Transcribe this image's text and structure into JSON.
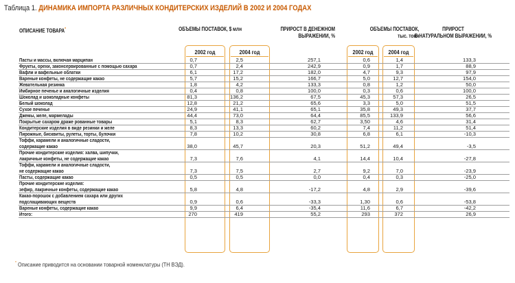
{
  "title": {
    "label": "Таблица 1.",
    "text": "ДИНАМИКА ИМПОРТА РАЗЛИЧНЫХ КОНДИТЕРСКИХ ИЗДЕЛИЙ В 2002 И 2004 ГОДАХ"
  },
  "headers": {
    "description": "ОПИСАНИЕ ТОВАРА",
    "description_mark": "*",
    "volumes_usd": "ОБЪЕМЫ ПОСТАВОК, $ млн",
    "growth_money_1": "ПРИРОСТ В ДЕНЕЖНОМ",
    "growth_money_2": "ВЫРАЖЕНИИ, %",
    "volumes_tons_1": "ОБЪЕМЫ ПОСТАВОК,",
    "volumes_tons_2": "тыс. тонн",
    "growth_natural_1": "ПРИРОСТ",
    "growth_natural_2": "В НАТУРАЛЬНОМ ВЫРАЖЕНИИ, %",
    "year_2002": "2002 год",
    "year_2004": "2004 год"
  },
  "accent_color": "#e8a33c",
  "title_color": "#c85a00",
  "rows": [
    {
      "name": "Пасты и массы, включая марципан",
      "usd2002": "0,7",
      "usd2004": "2,5",
      "growth_money": "257,1",
      "t2002": "0,6",
      "t2004": "1,4",
      "growth_nat": "133,3"
    },
    {
      "name": "Фрукты, орехи, законсервированные с помощью сахара",
      "usd2002": "0,7",
      "usd2004": "2,4",
      "growth_money": "242,9",
      "t2002": "0,9",
      "t2004": "1,7",
      "growth_nat": "88,9"
    },
    {
      "name": "Вафли и вафельные облатки",
      "usd2002": "6,1",
      "usd2004": "17,2",
      "growth_money": "182,0",
      "t2002": "4,7",
      "t2004": "9,3",
      "growth_nat": "97,9"
    },
    {
      "name": "Вареные конфеты, не содержащие какао",
      "usd2002": "5,7",
      "usd2004": "15,2",
      "growth_money": "166,7",
      "t2002": "5,0",
      "t2004": "12,7",
      "growth_nat": "154,0"
    },
    {
      "name": "Жевательная резинка",
      "usd2002": "1,8",
      "usd2004": "4,2",
      "growth_money": "133,3",
      "t2002": "0,8",
      "t2004": "1,2",
      "growth_nat": "50,0"
    },
    {
      "name": "Имбирное печенье и аналогичные изделия",
      "usd2002": "0,4",
      "usd2004": "0,8",
      "growth_money": "100,0",
      "t2002": "0,3",
      "t2004": "0,6",
      "growth_nat": "100,0"
    },
    {
      "name": "Шоколад и шоколадные конфеты",
      "usd2002": "81,3",
      "usd2004": "136,2",
      "growth_money": "67,5",
      "t2002": "45,3",
      "t2004": "57,3",
      "growth_nat": "26,5"
    },
    {
      "name": "Белый шоколад",
      "usd2002": "12,8",
      "usd2004": "21,2",
      "growth_money": "65,6",
      "t2002": "3,3",
      "t2004": "5,0",
      "growth_nat": "51,5"
    },
    {
      "name": "Сухое печенье",
      "usd2002": "24,9",
      "usd2004": "41,1",
      "growth_money": "65,1",
      "t2002": "35,8",
      "t2004": "49,3",
      "growth_nat": "37,7"
    },
    {
      "name": "Джемы, желе, мармелады",
      "usd2002": "44,4",
      "usd2004": "73,0",
      "growth_money": "64,4",
      "t2002": "85,5",
      "t2004": "133,9",
      "growth_nat": "56,6"
    },
    {
      "name": "Покрытые сахаром драже рованные товары",
      "usd2002": "5,1",
      "usd2004": "8,3",
      "growth_money": "62,7",
      "t2002": "3,50",
      "t2004": "4,6",
      "growth_nat": "31,4"
    },
    {
      "name": "Кондитерские изделия в виде резинки и желе",
      "usd2002": "8,3",
      "usd2004": "13,3",
      "growth_money": "60,2",
      "t2002": "7,4",
      "t2004": "11,2",
      "growth_nat": "51,4"
    },
    {
      "name": "Пирожные, бисквиты, рулеты, торты, булочки",
      "usd2002": "7,8",
      "usd2004": "10,2",
      "growth_money": "30,8",
      "t2002": "6,8",
      "t2004": "6,1",
      "growth_nat": "-10,3"
    },
    {
      "name": "Тоффи, карамели и аналогичные сладости,\nсодержащие какао",
      "usd2002": "38,0",
      "usd2004": "45,7",
      "growth_money": "20,3",
      "t2002": "51,2",
      "t2004": "49,4",
      "growth_nat": "-3,5"
    },
    {
      "name": "Прочие кондитерские изделия: халва, шипучки,\nлакричные конфеты, не содержащие какао",
      "usd2002": "7,3",
      "usd2004": "7,6",
      "growth_money": "4,1",
      "t2002": "14,4",
      "t2004": "10,4",
      "growth_nat": "-27,8"
    },
    {
      "name": "Тоффи, карамели и аналогичные сладости,\nне содержащие какао",
      "usd2002": "7,3",
      "usd2004": "7,5",
      "growth_money": "2,7",
      "t2002": "9,2",
      "t2004": "7,0",
      "growth_nat": "-23,9"
    },
    {
      "name": "Пасты, содержащие какао",
      "usd2002": "0,5",
      "usd2004": "0,5",
      "growth_money": "0,0",
      "t2002": "0,4",
      "t2004": "0,3",
      "growth_nat": "-25,0"
    },
    {
      "name": "Прочие кондитерские изделия:\nзефир, лакричные конфеты, содержащие какао",
      "usd2002": "5,8",
      "usd2004": "4,8",
      "growth_money": "-17,2",
      "t2002": "4,8",
      "t2004": "2,9",
      "growth_nat": "-39,6"
    },
    {
      "name": "Какао-порошок с добавлением сахара или других\nподслащивающих веществ",
      "usd2002": "0,9",
      "usd2004": "0,6",
      "growth_money": "-33,3",
      "t2002": "1,30",
      "t2004": "0,6",
      "growth_nat": "-53,8"
    },
    {
      "name": "Вареные конфеты, содержащие какао",
      "usd2002": "9,9",
      "usd2004": "6,4",
      "growth_money": "-35,4",
      "t2002": "11,6",
      "t2004": "6,7",
      "growth_nat": "-42,2"
    },
    {
      "name": "Итого:",
      "usd2002": "270",
      "usd2004": "419",
      "growth_money": "55,2",
      "t2002": "293",
      "t2004": "372",
      "growth_nat": "26,9"
    }
  ],
  "footnote": {
    "mark": "*",
    "text": "Описание приводится на основании товарной номенклатуры (ТН ВЭД)."
  }
}
